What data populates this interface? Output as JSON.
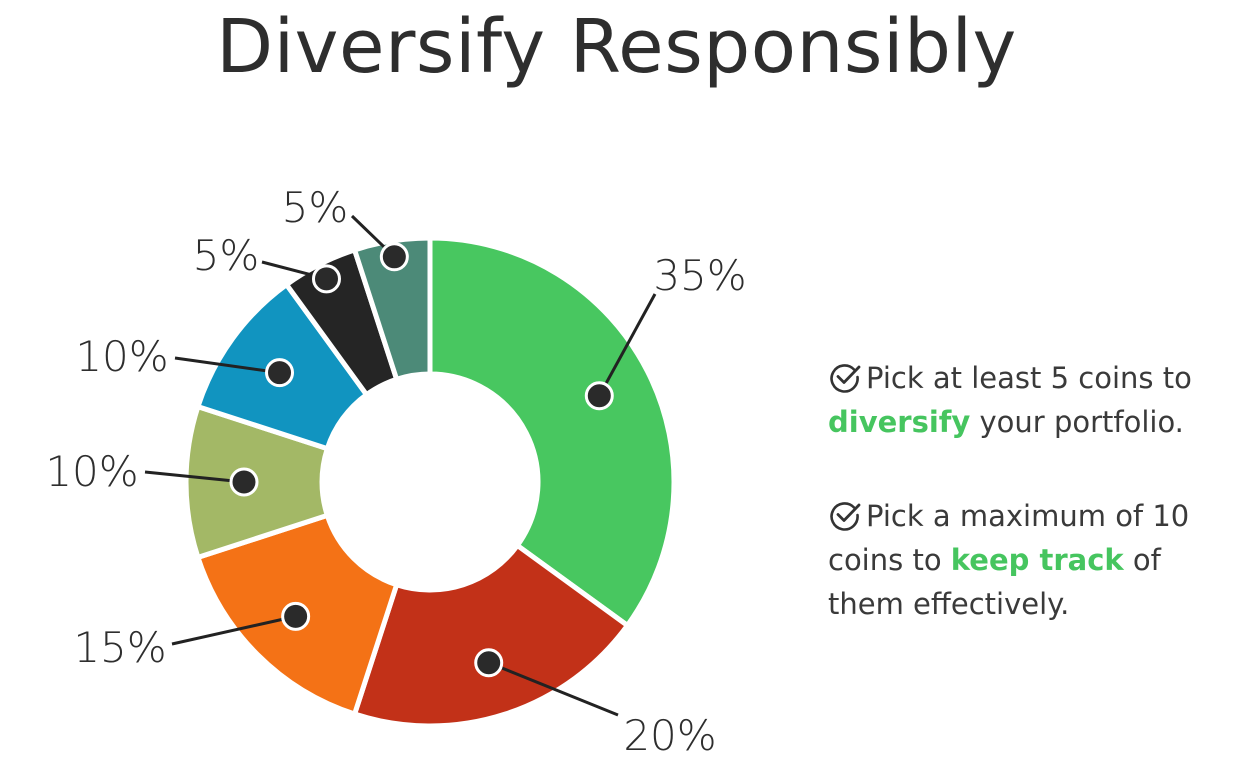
{
  "title": "Diversify Responsibly",
  "chart_data": {
    "type": "pie",
    "donut": true,
    "slices": [
      {
        "label": "35%",
        "value": 35,
        "color": "#48c760"
      },
      {
        "label": "20%",
        "value": 20,
        "color": "#c23118"
      },
      {
        "label": "15%",
        "value": 15,
        "color": "#f47216"
      },
      {
        "label": "10%",
        "value": 10,
        "color": "#a3b866"
      },
      {
        "label": "10%",
        "value": 10,
        "color": "#1194c0"
      },
      {
        "label": "5%",
        "value": 5,
        "color": "#252525"
      },
      {
        "label": "5%",
        "value": 5,
        "color": "#4c8a78"
      }
    ]
  },
  "tips": [
    {
      "icon": "check-circle-icon",
      "pre": "Pick at least 5 coins to",
      "highlight": "diversify",
      "post": " your portfolio."
    },
    {
      "icon": "check-circle-icon",
      "pre": "Pick a maximum of 10 coins to",
      "highlight": "keep track",
      "post": " of them effectively."
    }
  ],
  "colors": {
    "highlight": "#46c55f",
    "text": "#333333"
  }
}
